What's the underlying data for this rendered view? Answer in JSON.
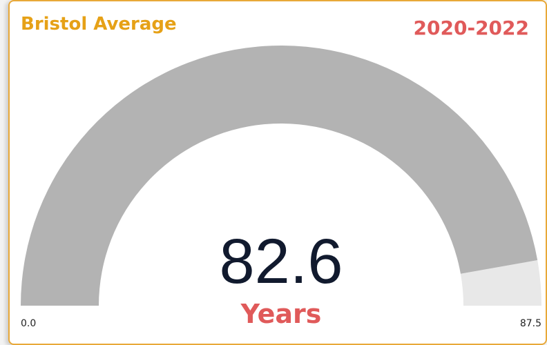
{
  "chart_data": {
    "type": "gauge",
    "title": "Bristol Average",
    "subtitle": "2020-2022",
    "value": 82.6,
    "unit": "Years",
    "ylim": [
      0,
      87.5
    ],
    "yticks": [
      {
        "value": 0,
        "label": "0.0"
      },
      {
        "value": 87.5,
        "label": "87.5"
      }
    ],
    "color": "#b3b3b3",
    "track_color": "#e8e8e8"
  }
}
